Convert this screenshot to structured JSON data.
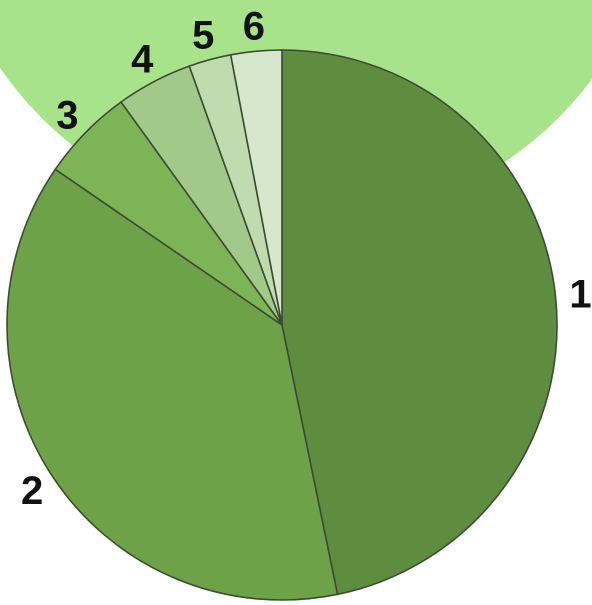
{
  "colors": {
    "background_circle": "#a8e38c",
    "slice_outline": "#3d4a36"
  },
  "chart_data": {
    "type": "pie",
    "start_angle_deg": 0,
    "direction": "clockwise",
    "slices": [
      {
        "label": "1",
        "value": 47.0,
        "color": "#5f8d40"
      },
      {
        "label": "2",
        "value": 38.0,
        "color": "#6ea249"
      },
      {
        "label": "3",
        "value": 5.5,
        "color": "#7db455"
      },
      {
        "label": "4",
        "value": 4.5,
        "color": "#a3c98a"
      },
      {
        "label": "5",
        "value": 2.5,
        "color": "#c0dcae"
      },
      {
        "label": "6",
        "value": 3.0,
        "color": "#d7e7cc"
      }
    ]
  }
}
